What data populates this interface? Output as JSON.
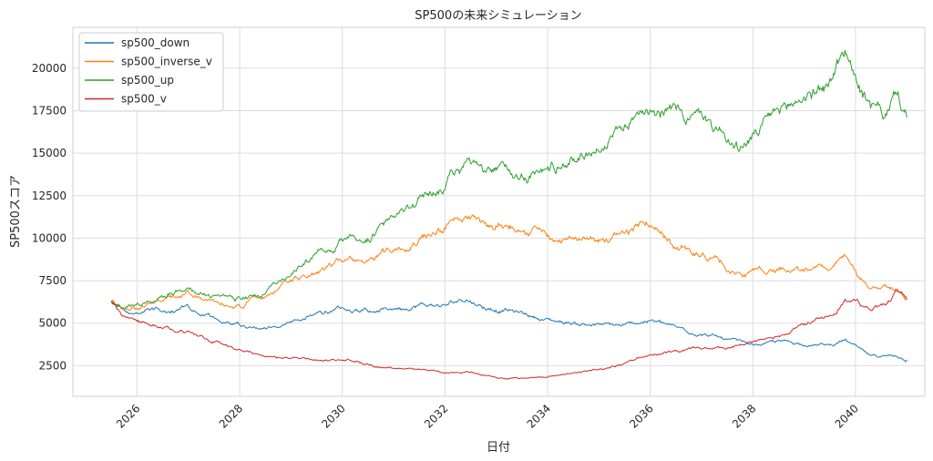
{
  "chart_data": {
    "type": "line",
    "title": "SP500の未来シミュレーション",
    "xlabel": "日付",
    "ylabel": "SP500スコア",
    "xlim": [
      2024.75,
      2041.35
    ],
    "ylim": [
      700,
      22400
    ],
    "x_ticks": [
      2026,
      2028,
      2030,
      2032,
      2034,
      2036,
      2038,
      2040
    ],
    "y_ticks": [
      2500,
      5000,
      7500,
      10000,
      12500,
      15000,
      17500,
      20000
    ],
    "grid": true,
    "legend_position": "top-left",
    "series": [
      {
        "name": "sp500_down",
        "color": "#1f77b4",
        "points": [
          [
            2025.5,
            6300
          ],
          [
            2025.7,
            5800
          ],
          [
            2026.0,
            5600
          ],
          [
            2026.5,
            5800
          ],
          [
            2027.0,
            5900
          ],
          [
            2027.5,
            5300
          ],
          [
            2028.0,
            5000
          ],
          [
            2028.5,
            4700
          ],
          [
            2029.0,
            5000
          ],
          [
            2029.5,
            5500
          ],
          [
            2030.0,
            5800
          ],
          [
            2030.5,
            5700
          ],
          [
            2031.0,
            5900
          ],
          [
            2031.5,
            6100
          ],
          [
            2032.0,
            6000
          ],
          [
            2032.4,
            6500
          ],
          [
            2032.8,
            5900
          ],
          [
            2033.2,
            5800
          ],
          [
            2033.6,
            5500
          ],
          [
            2034.0,
            5200
          ],
          [
            2034.5,
            5000
          ],
          [
            2035.0,
            4900
          ],
          [
            2035.5,
            4800
          ],
          [
            2036.0,
            5200
          ],
          [
            2036.5,
            4700
          ],
          [
            2037.0,
            4400
          ],
          [
            2037.5,
            4000
          ],
          [
            2038.0,
            3700
          ],
          [
            2038.5,
            3900
          ],
          [
            2039.0,
            3800
          ],
          [
            2039.5,
            3700
          ],
          [
            2039.8,
            4000
          ],
          [
            2040.0,
            3600
          ],
          [
            2040.3,
            3000
          ],
          [
            2040.8,
            3100
          ],
          [
            2041.0,
            2850
          ]
        ]
      },
      {
        "name": "sp500_inverse_v",
        "color": "#ff7f0e",
        "points": [
          [
            2025.5,
            6300
          ],
          [
            2025.7,
            5900
          ],
          [
            2026.0,
            5900
          ],
          [
            2026.5,
            6300
          ],
          [
            2027.0,
            6600
          ],
          [
            2027.5,
            6300
          ],
          [
            2028.0,
            6000
          ],
          [
            2028.5,
            6600
          ],
          [
            2029.0,
            7400
          ],
          [
            2029.5,
            8000
          ],
          [
            2030.0,
            8600
          ],
          [
            2030.5,
            8800
          ],
          [
            2031.0,
            9300
          ],
          [
            2031.5,
            10300
          ],
          [
            2032.0,
            10600
          ],
          [
            2032.4,
            11600
          ],
          [
            2032.8,
            10800
          ],
          [
            2033.2,
            11000
          ],
          [
            2033.6,
            10600
          ],
          [
            2034.0,
            10200
          ],
          [
            2034.5,
            10000
          ],
          [
            2035.0,
            9900
          ],
          [
            2035.5,
            10000
          ],
          [
            2036.0,
            10900
          ],
          [
            2036.5,
            9800
          ],
          [
            2037.0,
            9000
          ],
          [
            2037.5,
            8200
          ],
          [
            2037.8,
            7700
          ],
          [
            2038.5,
            8300
          ],
          [
            2039.0,
            8200
          ],
          [
            2039.5,
            8300
          ],
          [
            2039.8,
            8800
          ],
          [
            2040.0,
            7800
          ],
          [
            2040.3,
            6800
          ],
          [
            2040.8,
            7100
          ],
          [
            2041.0,
            6400
          ]
        ]
      },
      {
        "name": "sp500_up",
        "color": "#2ca02c",
        "points": [
          [
            2025.5,
            6300
          ],
          [
            2025.7,
            5900
          ],
          [
            2026.0,
            6000
          ],
          [
            2026.5,
            6500
          ],
          [
            2027.0,
            7100
          ],
          [
            2027.5,
            6700
          ],
          [
            2028.0,
            6500
          ],
          [
            2028.5,
            6800
          ],
          [
            2029.0,
            8000
          ],
          [
            2029.5,
            9000
          ],
          [
            2030.0,
            9800
          ],
          [
            2030.5,
            10200
          ],
          [
            2031.0,
            11000
          ],
          [
            2031.5,
            12300
          ],
          [
            2032.0,
            13200
          ],
          [
            2032.4,
            14300
          ],
          [
            2032.8,
            13500
          ],
          [
            2033.2,
            14000
          ],
          [
            2033.6,
            13800
          ],
          [
            2034.0,
            14000
          ],
          [
            2034.5,
            14700
          ],
          [
            2035.0,
            15400
          ],
          [
            2035.5,
            16500
          ],
          [
            2036.0,
            18200
          ],
          [
            2036.5,
            17400
          ],
          [
            2037.0,
            17000
          ],
          [
            2037.5,
            16000
          ],
          [
            2037.7,
            15200
          ],
          [
            2038.0,
            15900
          ],
          [
            2038.5,
            17300
          ],
          [
            2039.0,
            18300
          ],
          [
            2039.5,
            19200
          ],
          [
            2039.8,
            21100
          ],
          [
            2040.0,
            19500
          ],
          [
            2040.3,
            17500
          ],
          [
            2040.6,
            17200
          ],
          [
            2040.8,
            18500
          ],
          [
            2041.0,
            17100
          ]
        ]
      },
      {
        "name": "sp500_v",
        "color": "#d62728",
        "points": [
          [
            2025.5,
            6300
          ],
          [
            2025.7,
            5400
          ],
          [
            2026.0,
            5100
          ],
          [
            2026.5,
            4800
          ],
          [
            2027.0,
            4500
          ],
          [
            2027.5,
            4000
          ],
          [
            2028.0,
            3400
          ],
          [
            2028.5,
            3000
          ],
          [
            2029.0,
            2900
          ],
          [
            2029.5,
            2800
          ],
          [
            2030.0,
            2900
          ],
          [
            2030.5,
            2600
          ],
          [
            2031.0,
            2300
          ],
          [
            2031.5,
            2300
          ],
          [
            2032.0,
            2100
          ],
          [
            2032.4,
            2150
          ],
          [
            2032.8,
            1950
          ],
          [
            2033.2,
            1700
          ],
          [
            2033.6,
            1750
          ],
          [
            2034.0,
            1850
          ],
          [
            2034.5,
            2100
          ],
          [
            2035.0,
            2300
          ],
          [
            2035.5,
            2600
          ],
          [
            2036.0,
            3200
          ],
          [
            2036.5,
            3300
          ],
          [
            2037.0,
            3500
          ],
          [
            2037.5,
            3500
          ],
          [
            2038.0,
            3800
          ],
          [
            2038.5,
            4300
          ],
          [
            2039.0,
            4900
          ],
          [
            2039.5,
            5500
          ],
          [
            2039.8,
            6500
          ],
          [
            2040.0,
            6300
          ],
          [
            2040.3,
            5900
          ],
          [
            2040.6,
            6200
          ],
          [
            2040.8,
            6800
          ],
          [
            2041.0,
            6400
          ]
        ]
      }
    ]
  }
}
